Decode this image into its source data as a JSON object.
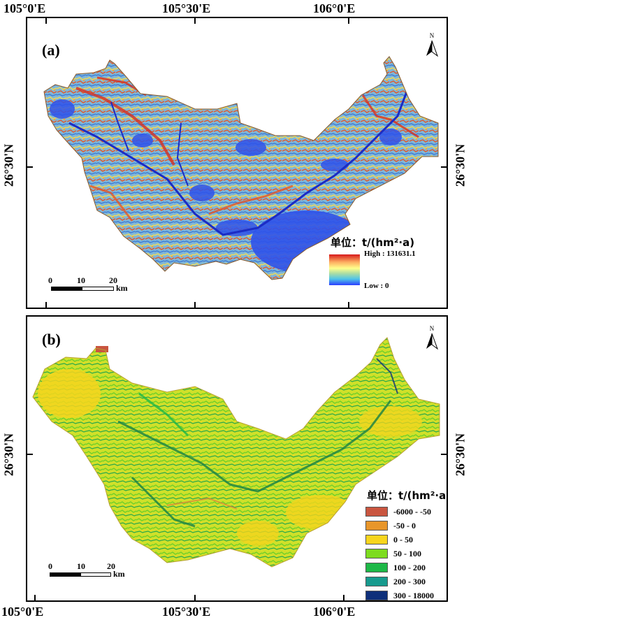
{
  "axes": {
    "top_lon": [
      "105°0'E",
      "105°30'E",
      "106°0'E"
    ],
    "bottom_lon": [
      "105°0'E",
      "105°30'E",
      "106°0'E"
    ],
    "left_lat_a": "26°30'N",
    "right_lat_a": "26°30'N",
    "left_lat_b": "26°30'N",
    "right_lat_b": "26°30'N"
  },
  "panel_a": {
    "label": "(a)",
    "north_letter": "N",
    "scale": {
      "n0": "0",
      "n1": "10",
      "n2": "20",
      "unit": "km"
    },
    "legend": {
      "title": "单位：t/(hm²·a)",
      "high": "High : 131631.1",
      "low": "Low : 0"
    },
    "colors": {
      "high": "#d7191c",
      "mid": "#ffff8c",
      "low": "#2b3cff"
    }
  },
  "panel_b": {
    "label": "(b)",
    "north_letter": "N",
    "scale": {
      "n0": "0",
      "n1": "10",
      "n2": "20",
      "unit": "km"
    },
    "legend": {
      "title": "单位：t/(hm²·a)",
      "classes": [
        {
          "label": "-6000 - -50",
          "color": "#c9553f"
        },
        {
          "label": "-50 - 0",
          "color": "#e8962a"
        },
        {
          "label": "0 - 50",
          "color": "#f7d51d"
        },
        {
          "label": "50 - 100",
          "color": "#7ddc1f"
        },
        {
          "label": "100 - 200",
          "color": "#1db847"
        },
        {
          "label": "200 - 300",
          "color": "#179a8e"
        },
        {
          "label": "300 - 18000",
          "color": "#0e2f7a"
        }
      ]
    }
  }
}
